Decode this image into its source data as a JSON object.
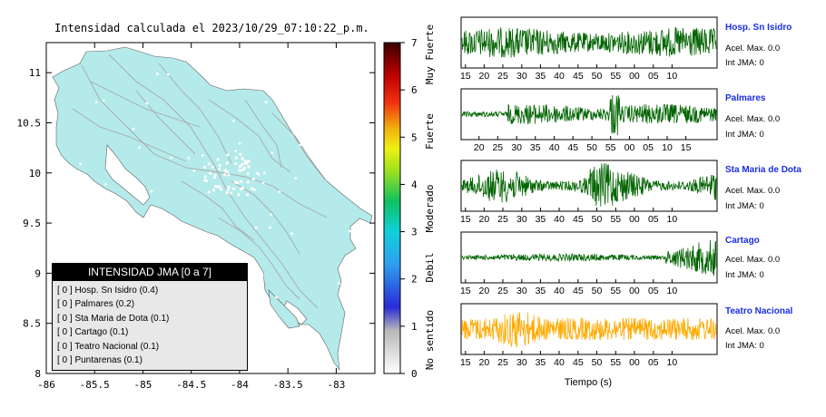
{
  "map": {
    "title": "Intensidad calculada el 2023/10/29_07:10:22_p.m.",
    "x_ticks": [
      "-86",
      "-85.5",
      "-85",
      "-84.5",
      "-84",
      "-83.5",
      "-83"
    ],
    "y_ticks": [
      "11",
      "10.5",
      "10",
      "9.5",
      "9",
      "8.5",
      "8"
    ]
  },
  "colorbar": {
    "ticks": [
      "0",
      "1",
      "2",
      "3",
      "4",
      "5",
      "6",
      "7"
    ],
    "labels": [
      "No sentido",
      "Debil",
      "Moderado",
      "Fuerte",
      "Muy Fuerte"
    ]
  },
  "legend": {
    "title": "INTENSIDAD JMA [0 a 7]",
    "items": [
      "[ 0 ]  Hosp. Sn Isidro (0.4)",
      "[ 0 ]  Palmares (0.2)",
      "[ 0 ]  Sta Maria de Dota (0.1)",
      "[ 0 ]  Cartago (0.1)",
      "[ 0 ]  Teatro Nacional (0.1)",
      "[ 0 ]  Puntarenas (0.1)"
    ]
  },
  "stations": [
    {
      "name": "Hosp. Sn Isidro",
      "acel": "Acel. Max. 0.0",
      "int": "Int JMA: 0",
      "color": "#006400",
      "ticks": [
        "15",
        "20",
        "25",
        "30",
        "35",
        "40",
        "45",
        "50",
        "55",
        "00",
        "05",
        "10"
      ]
    },
    {
      "name": "Palmares",
      "acel": "Acel. Max. 0.0",
      "int": "Int JMA: 0",
      "color": "#006400",
      "ticks": [
        "20",
        "25",
        "30",
        "35",
        "40",
        "45",
        "50",
        "55",
        "00",
        "05",
        "10",
        "15"
      ]
    },
    {
      "name": "Sta Maria de Dota",
      "acel": "Acel. Max. 0.0",
      "int": "Int JMA: 0",
      "color": "#006400",
      "ticks": [
        "15",
        "20",
        "25",
        "30",
        "35",
        "40",
        "45",
        "50",
        "55",
        "00",
        "05",
        "10"
      ]
    },
    {
      "name": "Cartago",
      "acel": "Acel. Max. 0.0",
      "int": "Int JMA: 0",
      "color": "#006400",
      "ticks": [
        "15",
        "20",
        "25",
        "30",
        "35",
        "40",
        "45",
        "50",
        "55",
        "00",
        "05",
        "10"
      ]
    },
    {
      "name": "Teatro Nacional",
      "acel": "Acel. Max. 0.0",
      "int": "Int JMA: 0",
      "color": "#ffaa00",
      "ticks": [
        "15",
        "20",
        "25",
        "30",
        "35",
        "40",
        "45",
        "50",
        "55",
        "00",
        "05",
        "10"
      ]
    }
  ],
  "xlabel": "Tiempo (s)",
  "colors": {
    "land": "#b4eaea",
    "road": "#a8a8a8",
    "legend_bg": "#e8e8e8"
  },
  "chart_data": {
    "type": "heatmap",
    "title": "Intensidad calculada el 2023/10/29_07:10:22_p.m.",
    "xlim": [
      -86,
      -82.6
    ],
    "ylim": [
      8,
      11.3
    ],
    "colorbar_range": [
      0,
      7
    ],
    "station_intensity": [
      {
        "name": "Hosp. Sn Isidro",
        "jma": 0.4
      },
      {
        "name": "Palmares",
        "jma": 0.2
      },
      {
        "name": "Sta Maria de Dota",
        "jma": 0.1
      },
      {
        "name": "Cartago",
        "jma": 0.1
      },
      {
        "name": "Teatro Nacional",
        "jma": 0.1
      },
      {
        "name": "Puntarenas",
        "jma": 0.1
      }
    ]
  }
}
